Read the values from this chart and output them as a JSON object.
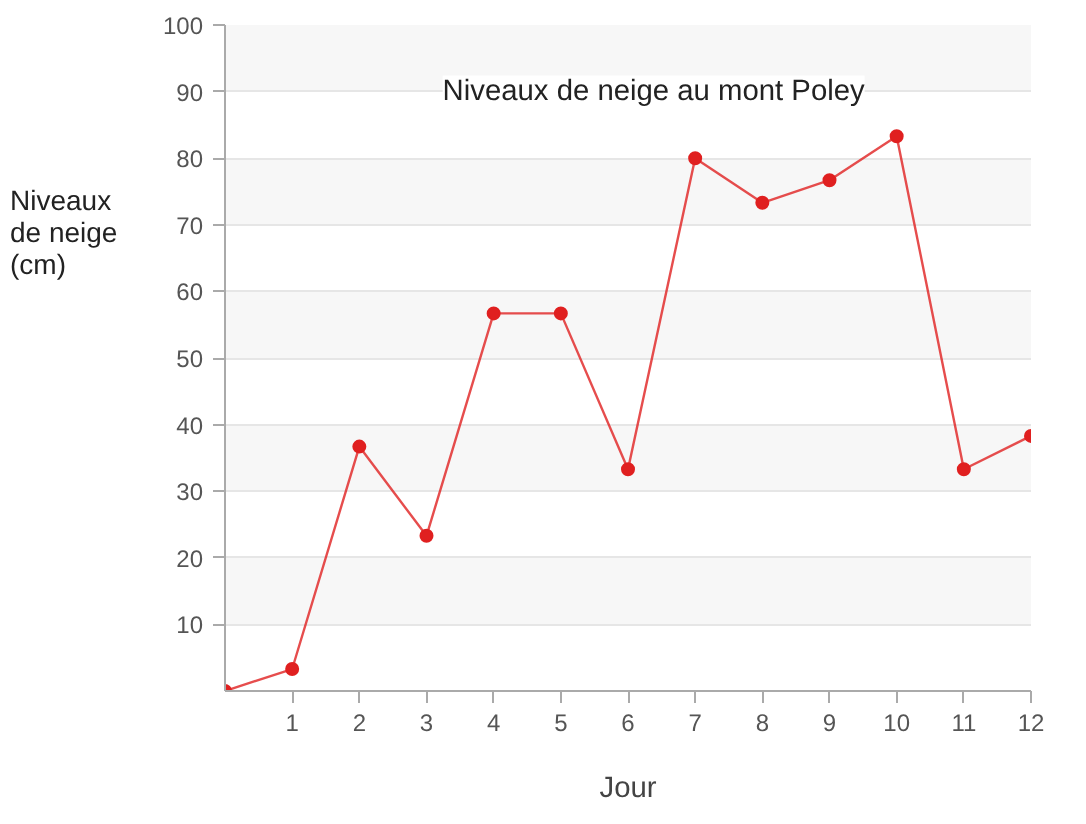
{
  "chart_data": {
    "type": "line",
    "title": "Niveaux de neige au mont Poley",
    "xlabel": "Jour",
    "ylabel": "Niveaux de neige (cm)",
    "x": [
      0,
      1,
      2,
      3,
      4,
      5,
      6,
      7,
      8,
      9,
      10,
      11,
      12
    ],
    "series": [
      {
        "color": "#e02020",
        "values": [
          0,
          3.3,
          36.7,
          23.3,
          56.7,
          56.7,
          33.3,
          80,
          73.3,
          76.7,
          83.3,
          33.3,
          38.3
        ]
      }
    ],
    "xlim": [
      0,
      12
    ],
    "xticks": [
      1,
      2,
      3,
      4,
      5,
      6,
      7,
      8,
      9,
      10,
      11,
      12
    ],
    "ylim": [
      0,
      100
    ],
    "yticks": [
      10,
      20,
      30,
      40,
      50,
      60,
      70,
      80,
      90,
      100
    ],
    "grid": "y",
    "marker": "circle",
    "line_style": "solid"
  }
}
